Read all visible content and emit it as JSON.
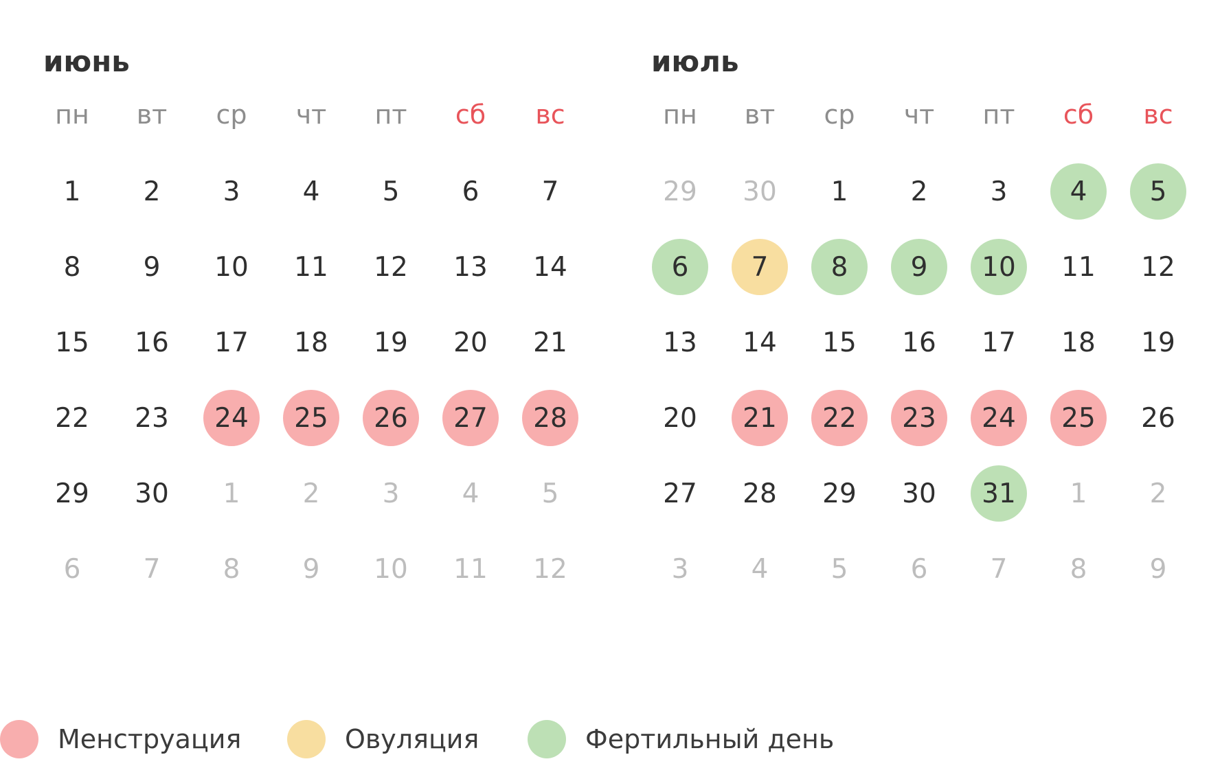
{
  "colors": {
    "menstruation": "#f8aeae",
    "ovulation": "#f8dea0",
    "fertile": "#bde0b5",
    "weekend_header": "#e8545a",
    "outside_day": "#bdbdbd"
  },
  "weekdays": [
    {
      "label": "пн",
      "weekend": false
    },
    {
      "label": "вт",
      "weekend": false
    },
    {
      "label": "ср",
      "weekend": false
    },
    {
      "label": "чт",
      "weekend": false
    },
    {
      "label": "пт",
      "weekend": false
    },
    {
      "label": "сб",
      "weekend": true
    },
    {
      "label": "вс",
      "weekend": true
    }
  ],
  "months": [
    {
      "title": "июнь",
      "days": [
        {
          "n": "1"
        },
        {
          "n": "2"
        },
        {
          "n": "3"
        },
        {
          "n": "4"
        },
        {
          "n": "5"
        },
        {
          "n": "6"
        },
        {
          "n": "7"
        },
        {
          "n": "8"
        },
        {
          "n": "9"
        },
        {
          "n": "10"
        },
        {
          "n": "11"
        },
        {
          "n": "12"
        },
        {
          "n": "13"
        },
        {
          "n": "14"
        },
        {
          "n": "15"
        },
        {
          "n": "16"
        },
        {
          "n": "17"
        },
        {
          "n": "18"
        },
        {
          "n": "19"
        },
        {
          "n": "20"
        },
        {
          "n": "21"
        },
        {
          "n": "22"
        },
        {
          "n": "23"
        },
        {
          "n": "24",
          "type": "menstruation"
        },
        {
          "n": "25",
          "type": "menstruation"
        },
        {
          "n": "26",
          "type": "menstruation"
        },
        {
          "n": "27",
          "type": "menstruation"
        },
        {
          "n": "28",
          "type": "menstruation"
        },
        {
          "n": "29"
        },
        {
          "n": "30"
        },
        {
          "n": "1",
          "outside": true
        },
        {
          "n": "2",
          "outside": true
        },
        {
          "n": "3",
          "outside": true
        },
        {
          "n": "4",
          "outside": true
        },
        {
          "n": "5",
          "outside": true
        },
        {
          "n": "6",
          "outside": true
        },
        {
          "n": "7",
          "outside": true
        },
        {
          "n": "8",
          "outside": true
        },
        {
          "n": "9",
          "outside": true
        },
        {
          "n": "10",
          "outside": true
        },
        {
          "n": "11",
          "outside": true
        },
        {
          "n": "12",
          "outside": true
        }
      ]
    },
    {
      "title": "июль",
      "days": [
        {
          "n": "29",
          "outside": true
        },
        {
          "n": "30",
          "outside": true
        },
        {
          "n": "1"
        },
        {
          "n": "2"
        },
        {
          "n": "3"
        },
        {
          "n": "4",
          "type": "fertile"
        },
        {
          "n": "5",
          "type": "fertile"
        },
        {
          "n": "6",
          "type": "fertile"
        },
        {
          "n": "7",
          "type": "ovulation"
        },
        {
          "n": "8",
          "type": "fertile"
        },
        {
          "n": "9",
          "type": "fertile"
        },
        {
          "n": "10",
          "type": "fertile"
        },
        {
          "n": "11"
        },
        {
          "n": "12"
        },
        {
          "n": "13"
        },
        {
          "n": "14"
        },
        {
          "n": "15"
        },
        {
          "n": "16"
        },
        {
          "n": "17"
        },
        {
          "n": "18"
        },
        {
          "n": "19"
        },
        {
          "n": "20"
        },
        {
          "n": "21",
          "type": "menstruation"
        },
        {
          "n": "22",
          "type": "menstruation"
        },
        {
          "n": "23",
          "type": "menstruation"
        },
        {
          "n": "24",
          "type": "menstruation"
        },
        {
          "n": "25",
          "type": "menstruation"
        },
        {
          "n": "26"
        },
        {
          "n": "27"
        },
        {
          "n": "28"
        },
        {
          "n": "29"
        },
        {
          "n": "30"
        },
        {
          "n": "31",
          "type": "fertile"
        },
        {
          "n": "1",
          "outside": true
        },
        {
          "n": "2",
          "outside": true
        },
        {
          "n": "3",
          "outside": true
        },
        {
          "n": "4",
          "outside": true
        },
        {
          "n": "5",
          "outside": true
        },
        {
          "n": "6",
          "outside": true
        },
        {
          "n": "7",
          "outside": true
        },
        {
          "n": "8",
          "outside": true
        },
        {
          "n": "9",
          "outside": true
        }
      ]
    }
  ],
  "legend": {
    "menstruation": "Менструация",
    "ovulation": "Овуляция",
    "fertile": "Фертильный день"
  }
}
